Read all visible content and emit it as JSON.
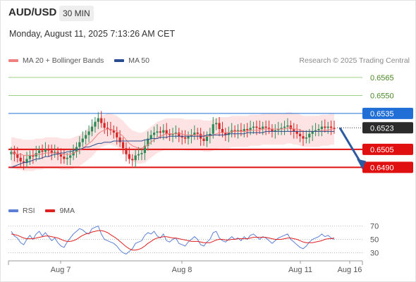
{
  "header": {
    "symbol": "AUD/USD",
    "timeframe": "30 MIN"
  },
  "timestamp": "Monday, August 11, 2025 7:13:26 AM CET",
  "legend": {
    "ma20_label": "MA 20 + Bollinger Bands",
    "ma50_label": "MA 50",
    "ma20_color": "#f08080",
    "ma50_color": "#2a4d8f"
  },
  "credit": "Research © 2025 Trading Central",
  "rsi_legend": {
    "rsi_label": "RSI",
    "ma_label": "9MA",
    "rsi_color": "#5b7fd6",
    "ma_color": "#e02020"
  },
  "colors": {
    "up": "#2e8b57",
    "down": "#d62728",
    "resistance": "#7cc060",
    "pivot": "#1f6fd6",
    "support": "#e01010",
    "last": "#2b2b2b",
    "arrow": "#2c5aa0",
    "band": "#fde3e3"
  },
  "chart_data": {
    "type": "candlestick",
    "symbol": "AUD/USD",
    "timeframe": "30 MIN",
    "y_range": [
      0.6472,
      0.6572
    ],
    "x_ticks": [
      "Aug 7",
      "Aug 8",
      "Aug 11",
      "Aug 16"
    ],
    "levels": [
      {
        "value": 0.6565,
        "label": "0.6565",
        "kind": "resistance"
      },
      {
        "value": 0.655,
        "label": "0.6550",
        "kind": "resistance"
      },
      {
        "value": 0.6535,
        "label": "0.6535",
        "kind": "pivot"
      },
      {
        "value": 0.6523,
        "label": "0.6523",
        "kind": "last"
      },
      {
        "value": 0.6505,
        "label": "0.6505",
        "kind": "support"
      },
      {
        "value": 0.649,
        "label": "0.6490",
        "kind": "support"
      }
    ],
    "forecast": {
      "from": 0.6523,
      "to": 0.649,
      "direction": "down"
    },
    "closes": [
      0.6503,
      0.6501,
      0.6498,
      0.6495,
      0.6494,
      0.6497,
      0.65,
      0.6499,
      0.6502,
      0.6504,
      0.6503,
      0.6505,
      0.6504,
      0.6502,
      0.6503,
      0.6501,
      0.6499,
      0.6497,
      0.6498,
      0.65,
      0.6503,
      0.6507,
      0.6511,
      0.6514,
      0.6517,
      0.652,
      0.6524,
      0.6528,
      0.6531,
      0.6527,
      0.6523,
      0.6522,
      0.6521,
      0.6519,
      0.6515,
      0.6511,
      0.6506,
      0.6501,
      0.6497,
      0.6496,
      0.65,
      0.6501,
      0.6502,
      0.6508,
      0.6514,
      0.6517,
      0.6519,
      0.652,
      0.6519,
      0.6521,
      0.6518,
      0.6517,
      0.6518,
      0.6519,
      0.6516,
      0.6515,
      0.6514,
      0.6516,
      0.6517,
      0.6519,
      0.6518,
      0.6514,
      0.6512,
      0.6516,
      0.6518,
      0.6526,
      0.6527,
      0.6522,
      0.6519,
      0.6517,
      0.6519,
      0.6521,
      0.652,
      0.6521,
      0.652,
      0.6522,
      0.6521,
      0.6523,
      0.6524,
      0.6523,
      0.6522,
      0.6524,
      0.6523,
      0.6522,
      0.652,
      0.6521,
      0.6522,
      0.6523,
      0.6524,
      0.6525,
      0.6522,
      0.652,
      0.6518,
      0.6516,
      0.6514,
      0.6515,
      0.6518,
      0.652,
      0.6521,
      0.6522,
      0.6524,
      0.6523,
      0.6524,
      0.6523,
      0.6522
    ],
    "ma20": [
      0.6502,
      0.6502,
      0.6501,
      0.6501,
      0.65,
      0.65,
      0.65,
      0.65,
      0.6501,
      0.6501,
      0.6501,
      0.6502,
      0.6502,
      0.6502,
      0.6502,
      0.6502,
      0.6501,
      0.6501,
      0.6501,
      0.6501,
      0.6502,
      0.6503,
      0.6504,
      0.6506,
      0.6508,
      0.651,
      0.6512,
      0.6515,
      0.6518,
      0.652,
      0.6521,
      0.6522,
      0.6522,
      0.6521,
      0.652,
      0.6518,
      0.6516,
      0.6513,
      0.651,
      0.6508,
      0.6507,
      0.6506,
      0.6506,
      0.6507,
      0.6509,
      0.6511,
      0.6513,
      0.6515,
      0.6516,
      0.6517,
      0.6518,
      0.6518,
      0.6518,
      0.6518,
      0.6518,
      0.6518,
      0.6517,
      0.6517,
      0.6517,
      0.6517,
      0.6517,
      0.6517,
      0.6516,
      0.6516,
      0.6516,
      0.6517,
      0.6518,
      0.6519,
      0.6519,
      0.6519,
      0.6519,
      0.652,
      0.652,
      0.652,
      0.652,
      0.652,
      0.652,
      0.6521,
      0.6521,
      0.6521,
      0.6521,
      0.6522,
      0.6522,
      0.6522,
      0.6522,
      0.6522,
      0.6522,
      0.6522,
      0.6522,
      0.6523,
      0.6523,
      0.6522,
      0.6522,
      0.6521,
      0.652,
      0.652,
      0.652,
      0.652,
      0.652,
      0.652,
      0.6521,
      0.6521,
      0.6521,
      0.6522,
      0.6522
    ],
    "ma50": [
      0.649,
      0.6491,
      0.6492,
      0.6493,
      0.6494,
      0.6494,
      0.6495,
      0.6496,
      0.6497,
      0.6497,
      0.6498,
      0.6499,
      0.6499,
      0.65,
      0.6501,
      0.6501,
      0.6502,
      0.6502,
      0.6503,
      0.6503,
      0.6504,
      0.6505,
      0.6505,
      0.6506,
      0.6507,
      0.6507,
      0.6508,
      0.6509,
      0.651,
      0.651,
      0.6511,
      0.6511,
      0.6511,
      0.6512,
      0.6512,
      0.6512,
      0.6512,
      0.6512,
      0.6512,
      0.6512,
      0.6512,
      0.6512,
      0.6512,
      0.6513,
      0.6513,
      0.6514,
      0.6514,
      0.6514,
      0.6515,
      0.6515,
      0.6515,
      0.6516,
      0.6516,
      0.6516,
      0.6516,
      0.6516,
      0.6516,
      0.6516,
      0.6516,
      0.6516,
      0.6516,
      0.6516,
      0.6516,
      0.6517,
      0.6517,
      0.6517,
      0.6517,
      0.6517,
      0.6517,
      0.6517,
      0.6518,
      0.6518,
      0.6518,
      0.6518,
      0.6518,
      0.6518,
      0.6519,
      0.6519,
      0.6519,
      0.6519,
      0.6519,
      0.6519,
      0.652,
      0.652,
      0.652,
      0.652,
      0.652,
      0.652,
      0.652,
      0.652,
      0.652,
      0.652,
      0.652,
      0.652,
      0.652,
      0.652,
      0.652,
      0.652,
      0.652,
      0.652,
      0.652,
      0.652,
      0.652,
      0.652,
      0.652
    ],
    "band_width": 0.0013,
    "rsi": {
      "y_range": [
        20,
        80
      ],
      "ticks": [
        70,
        50,
        30
      ],
      "rsi": [
        62,
        55,
        52,
        45,
        42,
        50,
        56,
        50,
        58,
        62,
        55,
        60,
        54,
        48,
        52,
        45,
        40,
        38,
        46,
        52,
        58,
        62,
        66,
        64,
        60,
        58,
        66,
        68,
        70,
        58,
        50,
        48,
        46,
        44,
        40,
        34,
        30,
        28,
        32,
        36,
        44,
        46,
        48,
        56,
        60,
        58,
        62,
        55,
        52,
        58,
        48,
        46,
        50,
        52,
        44,
        42,
        40,
        46,
        50,
        54,
        50,
        42,
        40,
        46,
        50,
        60,
        62,
        52,
        48,
        46,
        50,
        54,
        50,
        52,
        48,
        54,
        50,
        56,
        58,
        54,
        50,
        54,
        52,
        48,
        44,
        48,
        52,
        54,
        56,
        58,
        50,
        46,
        42,
        38,
        36,
        40,
        46,
        50,
        52,
        54,
        58,
        54,
        56,
        52,
        50
      ],
      "ma": [
        58,
        57,
        56,
        54,
        52,
        51,
        51,
        51,
        52,
        53,
        54,
        55,
        55,
        54,
        53,
        52,
        50,
        48,
        47,
        47,
        48,
        50,
        53,
        56,
        58,
        59,
        61,
        62,
        63,
        63,
        62,
        60,
        57,
        54,
        51,
        47,
        43,
        39,
        36,
        34,
        34,
        35,
        37,
        40,
        44,
        47,
        50,
        52,
        53,
        54,
        54,
        53,
        52,
        52,
        51,
        50,
        49,
        48,
        47,
        47,
        47,
        46,
        45,
        45,
        45,
        47,
        49,
        50,
        50,
        49,
        49,
        50,
        50,
        51,
        51,
        51,
        51,
        52,
        53,
        53,
        53,
        53,
        53,
        52,
        51,
        50,
        50,
        50,
        51,
        52,
        52,
        51,
        50,
        48,
        46,
        45,
        45,
        45,
        46,
        47,
        48,
        50,
        51,
        51,
        52
      ]
    }
  }
}
